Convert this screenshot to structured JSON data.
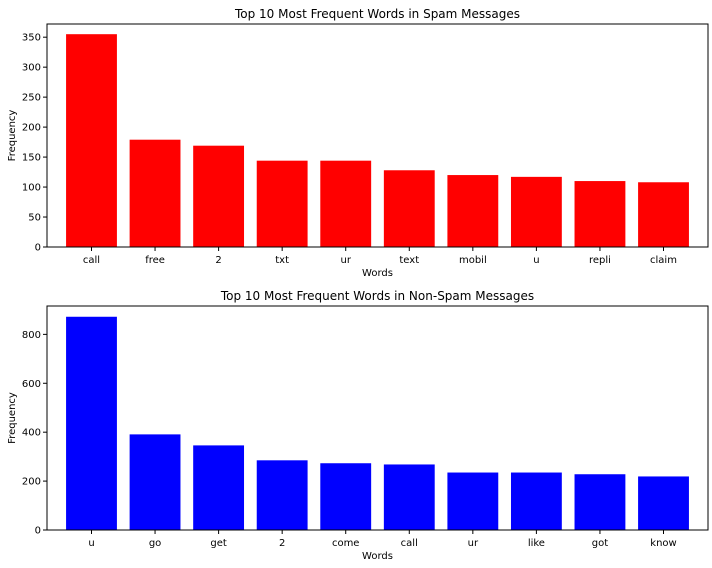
{
  "chart_data": [
    {
      "type": "bar",
      "title": "Top 10 Most Frequent Words in Spam Messages",
      "xlabel": "Words",
      "ylabel": "Frequency",
      "categories": [
        "call",
        "free",
        "2",
        "txt",
        "ur",
        "text",
        "mobil",
        "u",
        "repli",
        "claim"
      ],
      "values": [
        355,
        179,
        169,
        144,
        144,
        128,
        120,
        117,
        110,
        108
      ],
      "ylim": [
        0,
        372
      ],
      "yticks": [
        0,
        50,
        100,
        150,
        200,
        250,
        300,
        350
      ],
      "color": "#ff0000",
      "grid": false
    },
    {
      "type": "bar",
      "title": "Top 10 Most Frequent Words in Non-Spam Messages",
      "xlabel": "Words",
      "ylabel": "Frequency",
      "categories": [
        "u",
        "go",
        "get",
        "2",
        "come",
        "call",
        "ur",
        "like",
        "got",
        "know"
      ],
      "values": [
        872,
        391,
        346,
        285,
        273,
        268,
        235,
        235,
        228,
        219
      ],
      "ylim": [
        0,
        916
      ],
      "yticks": [
        0,
        200,
        400,
        600,
        800
      ],
      "color": "#0000ff",
      "grid": false
    }
  ]
}
